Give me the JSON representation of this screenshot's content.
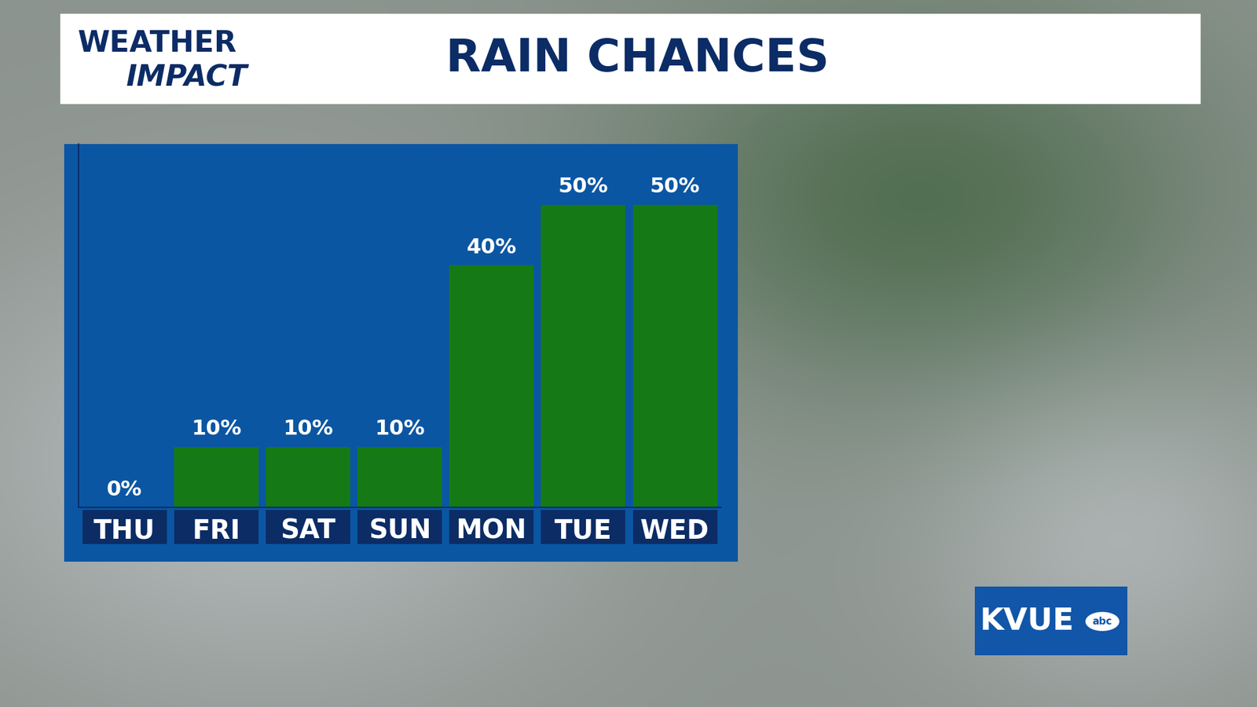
{
  "chart_data": {
    "type": "bar",
    "title": "RAIN CHANCES",
    "categories": [
      "THU",
      "FRI",
      "SAT",
      "SUN",
      "MON",
      "TUE",
      "WED"
    ],
    "values": [
      0,
      10,
      10,
      10,
      40,
      50,
      50
    ],
    "value_labels": [
      "0%",
      "10%",
      "10%",
      "10%",
      "40%",
      "50%",
      "50%"
    ],
    "data_labels": true,
    "color": "#157a15",
    "ylim": [
      0,
      60
    ],
    "grid": false,
    "tick_labels": "x",
    "annotations": [
      "WEATHER",
      "IMPACT",
      "KVUE",
      "abc"
    ]
  }
}
